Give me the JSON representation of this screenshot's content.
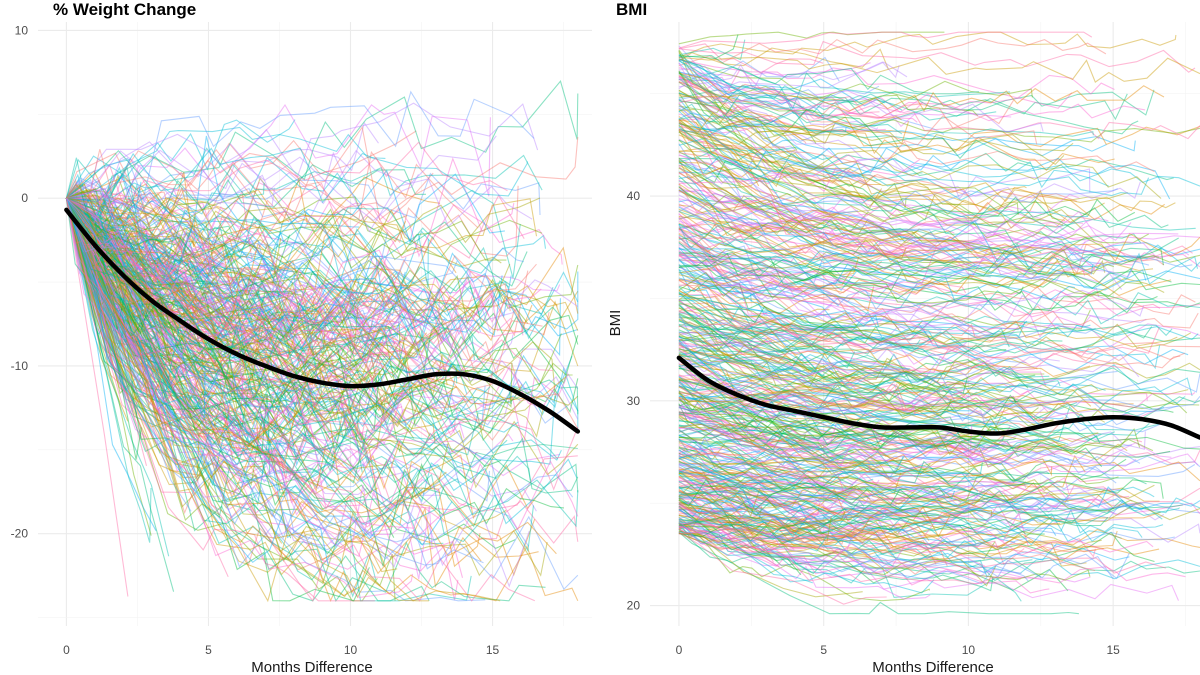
{
  "chart_data": [
    {
      "type": "line",
      "title": "% Weight Change",
      "xlabel": "Months Difference",
      "ylabel": "",
      "xlim": [
        -1.0,
        18.5
      ],
      "ylim": [
        -25.5,
        10.5
      ],
      "x_ticks": [
        0,
        5,
        10,
        15
      ],
      "y_ticks": [
        10,
        0,
        -10,
        -20
      ],
      "x_tick_labels": [
        "0",
        "5",
        "10",
        "15"
      ],
      "y_tick_labels": [
        "10",
        "0",
        "-10",
        "-20"
      ],
      "grid": true,
      "legend": "none",
      "series": [
        {
          "role": "smoothed mean",
          "color": "#000000",
          "x": [
            0,
            1,
            2,
            3,
            4,
            5,
            6,
            7,
            8,
            9,
            10,
            11,
            12,
            13,
            14,
            15,
            16,
            17,
            18
          ],
          "y": [
            -0.7,
            -2.8,
            -4.6,
            -6.1,
            -7.3,
            -8.4,
            -9.3,
            -10.0,
            -10.6,
            -11.0,
            -11.2,
            -11.1,
            -10.8,
            -10.5,
            -10.5,
            -10.9,
            -11.7,
            -12.7,
            -13.9
          ]
        }
      ],
      "individual_trajectories": {
        "count_approx": 450,
        "start_x": 0,
        "start_y": 0,
        "y_range": [
          -24,
          10
        ],
        "palette": [
          "#F8766D",
          "#E58700",
          "#C99800",
          "#A3A500",
          "#6BB100",
          "#00BA38",
          "#00BF7D",
          "#00C0AF",
          "#00BCD8",
          "#00B0F6",
          "#619CFF",
          "#B983FF",
          "#E76BF3",
          "#FD61D1",
          "#FF67A4"
        ]
      }
    },
    {
      "type": "line",
      "title": "BMI",
      "xlabel": "Months Difference",
      "ylabel": "BMI",
      "xlim": [
        -1.0,
        18.0
      ],
      "ylim": [
        19.0,
        48.5
      ],
      "x_ticks": [
        0,
        5,
        10,
        15
      ],
      "y_ticks": [
        40,
        30,
        20
      ],
      "x_tick_labels": [
        "0",
        "5",
        "10",
        "15"
      ],
      "y_tick_labels": [
        "40",
        "30",
        "20"
      ],
      "grid": true,
      "legend": "none",
      "series": [
        {
          "role": "smoothed mean",
          "color": "#000000",
          "x": [
            0,
            1,
            2,
            3,
            4,
            5,
            6,
            7,
            8,
            9,
            10,
            11,
            12,
            13,
            14,
            15,
            16,
            17,
            18
          ],
          "y": [
            32.1,
            31.0,
            30.3,
            29.8,
            29.5,
            29.2,
            28.9,
            28.7,
            28.7,
            28.7,
            28.5,
            28.4,
            28.6,
            28.9,
            29.1,
            29.2,
            29.1,
            28.8,
            28.2
          ]
        }
      ],
      "individual_trajectories": {
        "count_approx": 600,
        "start_x": 0,
        "start_y_range": [
          23,
          48
        ],
        "y_range": [
          19.5,
          48
        ],
        "palette": [
          "#F8766D",
          "#E58700",
          "#C99800",
          "#A3A500",
          "#6BB100",
          "#00BA38",
          "#00BF7D",
          "#00C0AF",
          "#00BCD8",
          "#00B0F6",
          "#619CFF",
          "#B983FF",
          "#E76BF3",
          "#FD61D1",
          "#FF67A4"
        ]
      }
    }
  ]
}
